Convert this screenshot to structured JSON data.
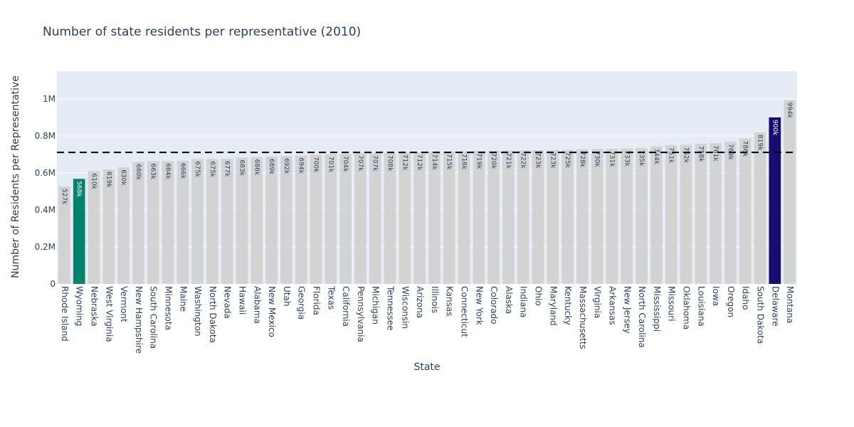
{
  "chart_data": {
    "type": "bar",
    "title": "Number of state residents per representative (2010)",
    "xlabel": "State",
    "ylabel": "Number of Residents per Representative",
    "ylim": [
      0,
      1150000
    ],
    "y_ticks": [
      0,
      200000,
      400000,
      600000,
      800000,
      1000000
    ],
    "y_tick_labels": [
      "0",
      "0.2M",
      "0.4M",
      "0.6M",
      "0.8M",
      "1M"
    ],
    "grid": true,
    "reference_line": {
      "value": 711000,
      "style": "dashed"
    },
    "categories": [
      "Rhode Island",
      "Wyoming",
      "Nebraska",
      "West Virginia",
      "Vermont",
      "New Hampshire",
      "South Carolina",
      "Minnesota",
      "Maine",
      "Washington",
      "North Dakota",
      "Nevada",
      "Hawaii",
      "Alabama",
      "New Mexico",
      "Utah",
      "Georgia",
      "Florida",
      "Texas",
      "California",
      "Pennsylvania",
      "Michigan",
      "Tennessee",
      "Wisconsin",
      "Arizona",
      "Illinois",
      "Kansas",
      "Connecticut",
      "New York",
      "Colorado",
      "Alaska",
      "Indiana",
      "Ohio",
      "Maryland",
      "Kentucky",
      "Massachusetts",
      "Virginia",
      "Arkansas",
      "New Jersey",
      "North Carolina",
      "Mississippi",
      "Missouri",
      "Oklahoma",
      "Louisiana",
      "Iowa",
      "Oregon",
      "Idaho",
      "South Dakota",
      "Delaware",
      "Montana"
    ],
    "values": [
      527000,
      568000,
      610000,
      619000,
      630000,
      660000,
      663000,
      664000,
      666000,
      675000,
      675000,
      677000,
      683000,
      686000,
      689000,
      692000,
      694000,
      700000,
      701000,
      704000,
      707000,
      707000,
      708000,
      712000,
      712000,
      714000,
      715000,
      716000,
      719000,
      720000,
      721000,
      722000,
      723000,
      723000,
      725000,
      728000,
      730000,
      731000,
      733000,
      735000,
      744000,
      751000,
      752000,
      758000,
      761000,
      769000,
      786000,
      819000,
      900000,
      994000
    ],
    "value_labels": [
      "527k",
      "568k",
      "610k",
      "619k",
      "630k",
      "660k",
      "663k",
      "664k",
      "666k",
      "675k",
      "675k",
      "677k",
      "683k",
      "686k",
      "689k",
      "692k",
      "694k",
      "700k",
      "701k",
      "704k",
      "707k",
      "707k",
      "708k",
      "712k",
      "712k",
      "714k",
      "715k",
      "716k",
      "719k",
      "720k",
      "721k",
      "722k",
      "723k",
      "723k",
      "725k",
      "728k",
      "730k",
      "731k",
      "733k",
      "735k",
      "744k",
      "751k",
      "752k",
      "758k",
      "761k",
      "769k",
      "786k",
      "819k",
      "900k",
      "994k"
    ],
    "colors": {
      "default": "#d3d3d3",
      "highlight_low": "#00836b",
      "highlight_high": "#1a0b6e",
      "plot_bg": "#e5ecf6",
      "grid": "#ffffff",
      "text": "#2a3f5f"
    },
    "highlights": {
      "Wyoming": "highlight_low",
      "Delaware": "highlight_high"
    }
  }
}
